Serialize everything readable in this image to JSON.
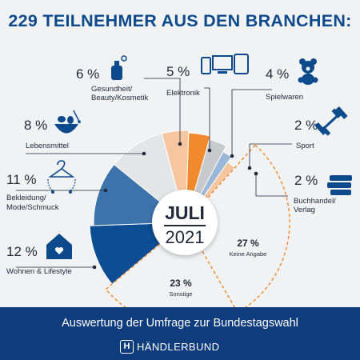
{
  "header": {
    "title": "229 TEILNEHMER AUS DEN BRANCHEN:"
  },
  "center": {
    "month": "JULI",
    "year": "2021"
  },
  "footer": {
    "text": "Auswertung der Umfrage zur Bundestagswahl",
    "brand": "HÄNDLERBUND",
    "logo_letter": "H"
  },
  "colors": {
    "dark_blue": "#0d4d93",
    "mid_blue": "#3c73aa",
    "orange": "#f08a2c",
    "light_orange": "#f5c6a0",
    "light_gray": "#e4e5e7",
    "mid_gray": "#c7c9cc",
    "light_blue": "#9ab7d8",
    "footer": "#0f3c7c"
  },
  "chart_data": {
    "type": "pie",
    "categories": [
      {
        "name": "Gesundheit/ Beauty/Kosmetik",
        "value": 6,
        "label": "6 %",
        "icon": "perfume-icon"
      },
      {
        "name": "Elektronik",
        "value": 5,
        "label": "5 %",
        "icon": "devices-icon"
      },
      {
        "name": "Spielwaren",
        "value": 4,
        "label": "4 %",
        "icon": "teddy-bear-icon"
      },
      {
        "name": "Sport",
        "value": 2,
        "label": "2 %",
        "icon": "dumbbell-icon"
      },
      {
        "name": "Buchhandel/ Verlag",
        "value": 2,
        "label": "2 %",
        "icon": "books-icon"
      },
      {
        "name": "Keine Angabe",
        "value": 27,
        "label": "27 %"
      },
      {
        "name": "Sonstige",
        "value": 23,
        "label": "23 %"
      },
      {
        "name": "Wohnen & Lifestyle",
        "value": 12,
        "label": "12 %",
        "icon": "house-icon"
      },
      {
        "name": "Bekleidung/ Mode/Schmuck",
        "value": 11,
        "label": "11 %",
        "icon": "hanger-icon"
      },
      {
        "name": "Lebensmittel",
        "value": 8,
        "label": "8 %",
        "icon": "food-bowl-icon"
      }
    ]
  }
}
